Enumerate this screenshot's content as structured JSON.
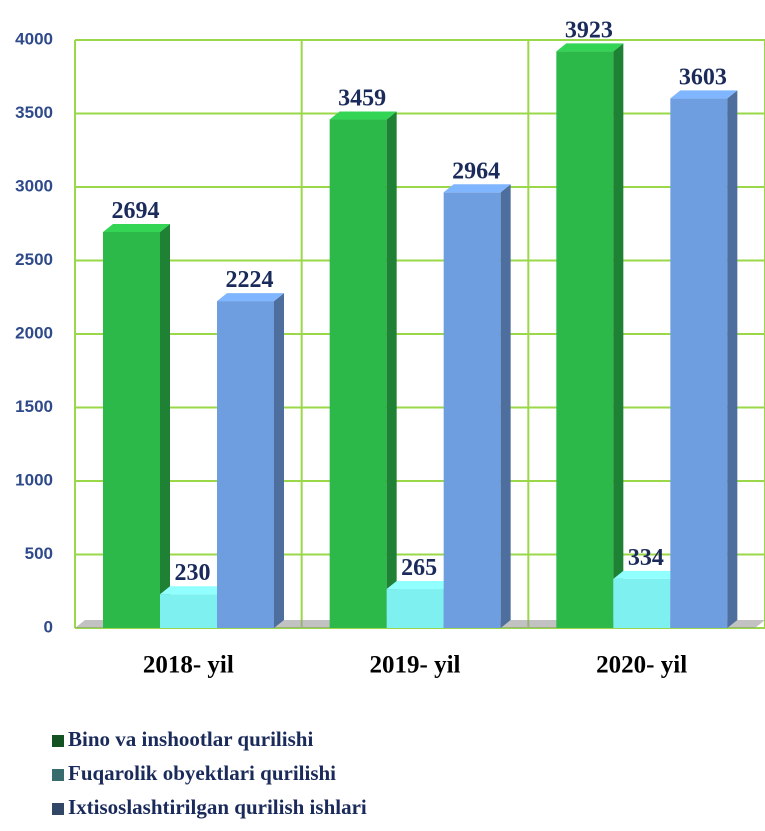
{
  "chart_data": {
    "type": "bar",
    "categories": [
      "2018- yil",
      "2019- yil",
      "2020- yil"
    ],
    "series": [
      {
        "name": "Bino va inshootlar qurilishi",
        "color": "#2db84a",
        "values": [
          2694,
          3459,
          3923
        ]
      },
      {
        "name": "Fuqarolik obyektlari qurilishi",
        "color": "#7ff0f0",
        "values": [
          230,
          265,
          334
        ]
      },
      {
        "name": "Ixtisoslashtirilgan qurilish ishlari",
        "color": "#6f9ee0",
        "values": [
          2224,
          2964,
          3603
        ]
      }
    ],
    "ylim": [
      0,
      4000
    ],
    "yticks": [
      0,
      500,
      1000,
      1500,
      2000,
      2500,
      3000,
      3500,
      4000
    ],
    "grid": true,
    "grid_color": "#9ad84a",
    "legend": "bottom"
  }
}
